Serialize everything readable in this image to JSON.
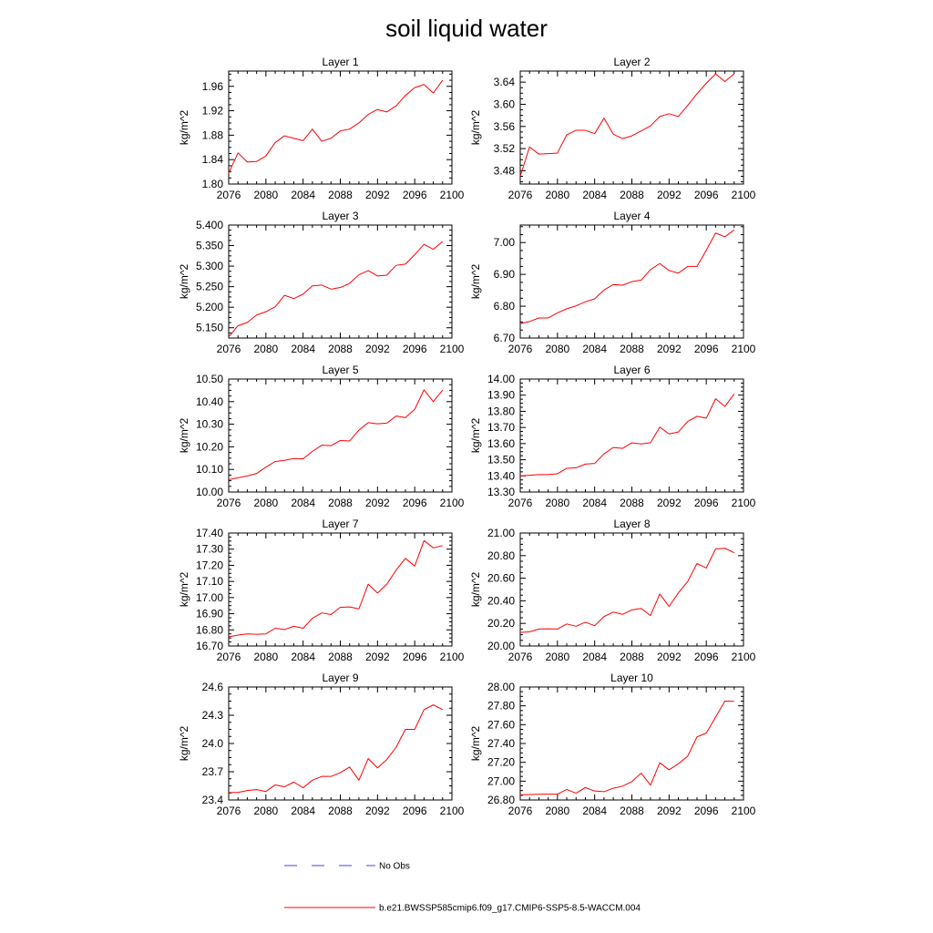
{
  "title": "soil liquid water",
  "legend": {
    "obs_label": "No Obs",
    "obs_color": "#4a4ad0",
    "model_label": "b.e21.BWSSP585cmip6.f09_g17.CMIP6-SSP5-8.5-WACCM.004",
    "model_color": "#ff0000"
  },
  "chart_data": [
    {
      "type": "line",
      "title": "Layer 1",
      "xlabel": "",
      "ylabel": "kg/m^2",
      "xlim": [
        2076,
        2100
      ],
      "ylim": [
        1.8,
        1.985
      ],
      "x_ticks": [
        "2076",
        "2080",
        "2084",
        "2088",
        "2092",
        "2096",
        "2100"
      ],
      "y_ticks": [
        "1.80",
        "1.84",
        "1.88",
        "1.92",
        "1.96"
      ],
      "series": [
        {
          "name": "b.e21.BWSSP585cmip6.f09_g17.CMIP6-SSP5-8.5-WACCM.004",
          "x": [
            2076,
            2077,
            2078,
            2079,
            2080,
            2081,
            2082,
            2083,
            2084,
            2085,
            2086,
            2087,
            2088,
            2089,
            2090,
            2091,
            2092,
            2093,
            2094,
            2095,
            2096,
            2097,
            2098,
            2099
          ],
          "values": [
            1.818,
            1.851,
            1.836,
            1.837,
            1.846,
            1.868,
            1.879,
            1.875,
            1.871,
            1.89,
            1.87,
            1.875,
            1.887,
            1.89,
            1.9,
            1.914,
            1.922,
            1.918,
            1.928,
            1.945,
            1.958,
            1.963,
            1.949,
            1.97
          ]
        }
      ]
    },
    {
      "type": "line",
      "title": "Layer 2",
      "xlabel": "",
      "ylabel": "kg/m^2",
      "xlim": [
        2076,
        2100
      ],
      "ylim": [
        3.456,
        3.66
      ],
      "x_ticks": [
        "2076",
        "2080",
        "2084",
        "2088",
        "2092",
        "2096",
        "2100"
      ],
      "y_ticks": [
        "3.48",
        "3.52",
        "3.56",
        "3.60",
        "3.64"
      ],
      "series": [
        {
          "name": "b.e21.BWSSP585cmip6.f09_g17.CMIP6-SSP5-8.5-WACCM.004",
          "x": [
            2076,
            2077,
            2078,
            2079,
            2080,
            2081,
            2082,
            2083,
            2084,
            2085,
            2086,
            2087,
            2088,
            2089,
            2090,
            2091,
            2092,
            2093,
            2094,
            2095,
            2096,
            2097,
            2098,
            2099
          ],
          "values": [
            3.47,
            3.523,
            3.51,
            3.511,
            3.512,
            3.545,
            3.553,
            3.553,
            3.547,
            3.575,
            3.546,
            3.538,
            3.543,
            3.552,
            3.561,
            3.578,
            3.583,
            3.578,
            3.598,
            3.619,
            3.638,
            3.655,
            3.641,
            3.655
          ]
        }
      ]
    },
    {
      "type": "line",
      "title": "Layer 3",
      "xlabel": "",
      "ylabel": "kg/m^2",
      "xlim": [
        2076,
        2100
      ],
      "ylim": [
        5.125,
        5.4
      ],
      "x_ticks": [
        "2076",
        "2080",
        "2084",
        "2088",
        "2092",
        "2096",
        "2100"
      ],
      "y_ticks": [
        "5.150",
        "5.200",
        "5.250",
        "5.300",
        "5.350",
        "5.400"
      ],
      "series": [
        {
          "name": "b.e21.BWSSP585cmip6.f09_g17.CMIP6-SSP5-8.5-WACCM.004",
          "x": [
            2076,
            2077,
            2078,
            2079,
            2080,
            2081,
            2082,
            2083,
            2084,
            2085,
            2086,
            2087,
            2088,
            2089,
            2090,
            2091,
            2092,
            2093,
            2094,
            2095,
            2096,
            2097,
            2098,
            2099
          ],
          "values": [
            5.128,
            5.155,
            5.163,
            5.181,
            5.189,
            5.201,
            5.229,
            5.221,
            5.232,
            5.252,
            5.254,
            5.244,
            5.248,
            5.258,
            5.279,
            5.289,
            5.276,
            5.278,
            5.302,
            5.305,
            5.328,
            5.353,
            5.341,
            5.36
          ]
        }
      ]
    },
    {
      "type": "line",
      "title": "Layer 4",
      "xlabel": "",
      "ylabel": "kg/m^2",
      "xlim": [
        2076,
        2100
      ],
      "ylim": [
        6.7,
        7.055
      ],
      "x_ticks": [
        "2076",
        "2080",
        "2084",
        "2088",
        "2092",
        "2096",
        "2100"
      ],
      "y_ticks": [
        "6.70",
        "6.80",
        "6.90",
        "7.00"
      ],
      "series": [
        {
          "name": "b.e21.BWSSP585cmip6.f09_g17.CMIP6-SSP5-8.5-WACCM.004",
          "x": [
            2076,
            2077,
            2078,
            2079,
            2080,
            2081,
            2082,
            2083,
            2084,
            2085,
            2086,
            2087,
            2088,
            2089,
            2090,
            2091,
            2092,
            2093,
            2094,
            2095,
            2096,
            2097,
            2098,
            2099
          ],
          "values": [
            6.745,
            6.752,
            6.763,
            6.763,
            6.779,
            6.792,
            6.801,
            6.814,
            6.823,
            6.851,
            6.868,
            6.866,
            6.877,
            6.882,
            6.915,
            6.934,
            6.912,
            6.904,
            6.925,
            6.925,
            6.976,
            7.03,
            7.018,
            7.04
          ]
        }
      ]
    },
    {
      "type": "line",
      "title": "Layer 5",
      "xlabel": "",
      "ylabel": "kg/m^2",
      "xlim": [
        2076,
        2100
      ],
      "ylim": [
        10.0,
        10.5
      ],
      "x_ticks": [
        "2076",
        "2080",
        "2084",
        "2088",
        "2092",
        "2096",
        "2100"
      ],
      "y_ticks": [
        "10.00",
        "10.10",
        "10.20",
        "10.30",
        "10.40",
        "10.50"
      ],
      "series": [
        {
          "name": "b.e21.BWSSP585cmip6.f09_g17.CMIP6-SSP5-8.5-WACCM.004",
          "x": [
            2076,
            2077,
            2078,
            2079,
            2080,
            2081,
            2082,
            2083,
            2084,
            2085,
            2086,
            2087,
            2088,
            2089,
            2090,
            2091,
            2092,
            2093,
            2094,
            2095,
            2096,
            2097,
            2098,
            2099
          ],
          "values": [
            10.055,
            10.063,
            10.071,
            10.082,
            10.11,
            10.135,
            10.14,
            10.148,
            10.147,
            10.18,
            10.207,
            10.205,
            10.228,
            10.226,
            10.274,
            10.307,
            10.302,
            10.305,
            10.336,
            10.329,
            10.366,
            10.452,
            10.4,
            10.451
          ]
        }
      ]
    },
    {
      "type": "line",
      "title": "Layer 6",
      "xlabel": "",
      "ylabel": "kg/m^2",
      "xlim": [
        2076,
        2100
      ],
      "ylim": [
        13.3,
        14.0
      ],
      "x_ticks": [
        "2076",
        "2080",
        "2084",
        "2088",
        "2092",
        "2096",
        "2100"
      ],
      "y_ticks": [
        "13.30",
        "13.40",
        "13.50",
        "13.60",
        "13.70",
        "13.80",
        "13.90",
        "14.00"
      ],
      "series": [
        {
          "name": "b.e21.BWSSP585cmip6.f09_g17.CMIP6-SSP5-8.5-WACCM.004",
          "x": [
            2076,
            2077,
            2078,
            2079,
            2080,
            2081,
            2082,
            2083,
            2084,
            2085,
            2086,
            2087,
            2088,
            2089,
            2090,
            2091,
            2092,
            2093,
            2094,
            2095,
            2096,
            2097,
            2098,
            2099
          ],
          "values": [
            13.4,
            13.404,
            13.408,
            13.408,
            13.413,
            13.447,
            13.45,
            13.473,
            13.477,
            13.536,
            13.576,
            13.57,
            13.605,
            13.598,
            13.605,
            13.702,
            13.66,
            13.672,
            13.737,
            13.769,
            13.757,
            13.878,
            13.83,
            13.907
          ]
        }
      ]
    },
    {
      "type": "line",
      "title": "Layer 7",
      "xlabel": "",
      "ylabel": "kg/m^2",
      "xlim": [
        2076,
        2100
      ],
      "ylim": [
        16.7,
        17.4
      ],
      "x_ticks": [
        "2076",
        "2080",
        "2084",
        "2088",
        "2092",
        "2096",
        "2100"
      ],
      "y_ticks": [
        "16.70",
        "16.80",
        "16.90",
        "17.00",
        "17.10",
        "17.20",
        "17.30",
        "17.40"
      ],
      "series": [
        {
          "name": "b.e21.BWSSP585cmip6.f09_g17.CMIP6-SSP5-8.5-WACCM.004",
          "x": [
            2076,
            2077,
            2078,
            2079,
            2080,
            2081,
            2082,
            2083,
            2084,
            2085,
            2086,
            2087,
            2088,
            2089,
            2090,
            2091,
            2092,
            2093,
            2094,
            2095,
            2096,
            2097,
            2098,
            2099
          ],
          "values": [
            16.757,
            16.768,
            16.775,
            16.773,
            16.775,
            16.81,
            16.802,
            16.822,
            16.81,
            16.872,
            16.905,
            16.895,
            16.94,
            16.942,
            16.93,
            17.083,
            17.028,
            17.083,
            17.17,
            17.243,
            17.195,
            17.353,
            17.308,
            17.322
          ]
        }
      ]
    },
    {
      "type": "line",
      "title": "Layer 8",
      "xlabel": "",
      "ylabel": "kg/m^2",
      "xlim": [
        2076,
        2100
      ],
      "ylim": [
        20.0,
        21.0
      ],
      "x_ticks": [
        "2076",
        "2080",
        "2084",
        "2088",
        "2092",
        "2096",
        "2100"
      ],
      "y_ticks": [
        "20.00",
        "20.20",
        "20.40",
        "20.60",
        "20.80",
        "21.00"
      ],
      "series": [
        {
          "name": "b.e21.BWSSP585cmip6.f09_g17.CMIP6-SSP5-8.5-WACCM.004",
          "x": [
            2076,
            2077,
            2078,
            2079,
            2080,
            2081,
            2082,
            2083,
            2084,
            2085,
            2086,
            2087,
            2088,
            2089,
            2090,
            2091,
            2092,
            2093,
            2094,
            2095,
            2096,
            2097,
            2098,
            2099
          ],
          "values": [
            20.12,
            20.125,
            20.15,
            20.152,
            20.15,
            20.195,
            20.175,
            20.21,
            20.18,
            20.26,
            20.3,
            20.28,
            20.32,
            20.332,
            20.27,
            20.46,
            20.35,
            20.47,
            20.57,
            20.73,
            20.69,
            20.86,
            20.865,
            20.825
          ]
        }
      ]
    },
    {
      "type": "line",
      "title": "Layer 9",
      "xlabel": "",
      "ylabel": "kg/m^2",
      "xlim": [
        2076,
        2100
      ],
      "ylim": [
        23.4,
        24.6
      ],
      "x_ticks": [
        "2076",
        "2080",
        "2084",
        "2088",
        "2092",
        "2096",
        "2100"
      ],
      "y_ticks": [
        "23.4",
        "23.7",
        "24.0",
        "24.3",
        "24.6"
      ],
      "series": [
        {
          "name": "b.e21.BWSSP585cmip6.f09_g17.CMIP6-SSP5-8.5-WACCM.004",
          "x": [
            2076,
            2077,
            2078,
            2079,
            2080,
            2081,
            2082,
            2083,
            2084,
            2085,
            2086,
            2087,
            2088,
            2089,
            2090,
            2091,
            2092,
            2093,
            2094,
            2095,
            2096,
            2097,
            2098,
            2099
          ],
          "values": [
            23.48,
            23.48,
            23.5,
            23.51,
            23.49,
            23.56,
            23.54,
            23.59,
            23.53,
            23.61,
            23.65,
            23.65,
            23.69,
            23.75,
            23.61,
            23.84,
            23.74,
            23.83,
            23.96,
            24.15,
            24.15,
            24.36,
            24.41,
            24.36
          ]
        }
      ]
    },
    {
      "type": "line",
      "title": "Layer 10",
      "xlabel": "",
      "ylabel": "kg/m^2",
      "xlim": [
        2076,
        2100
      ],
      "ylim": [
        26.8,
        28.0
      ],
      "x_ticks": [
        "2076",
        "2080",
        "2084",
        "2088",
        "2092",
        "2096",
        "2100"
      ],
      "y_ticks": [
        "26.80",
        "27.00",
        "27.20",
        "27.40",
        "27.60",
        "27.80",
        "28.00"
      ],
      "series": [
        {
          "name": "b.e21.BWSSP585cmip6.f09_g17.CMIP6-SSP5-8.5-WACCM.004",
          "x": [
            2076,
            2077,
            2078,
            2079,
            2080,
            2081,
            2082,
            2083,
            2084,
            2085,
            2086,
            2087,
            2088,
            2089,
            2090,
            2091,
            2092,
            2093,
            2094,
            2095,
            2096,
            2097,
            2098,
            2099
          ],
          "values": [
            26.855,
            26.858,
            26.86,
            26.862,
            26.862,
            26.912,
            26.872,
            26.932,
            26.895,
            26.888,
            26.925,
            26.947,
            26.995,
            27.085,
            26.958,
            27.195,
            27.12,
            27.185,
            27.265,
            27.47,
            27.51,
            27.68,
            27.85,
            27.848
          ]
        }
      ]
    }
  ]
}
